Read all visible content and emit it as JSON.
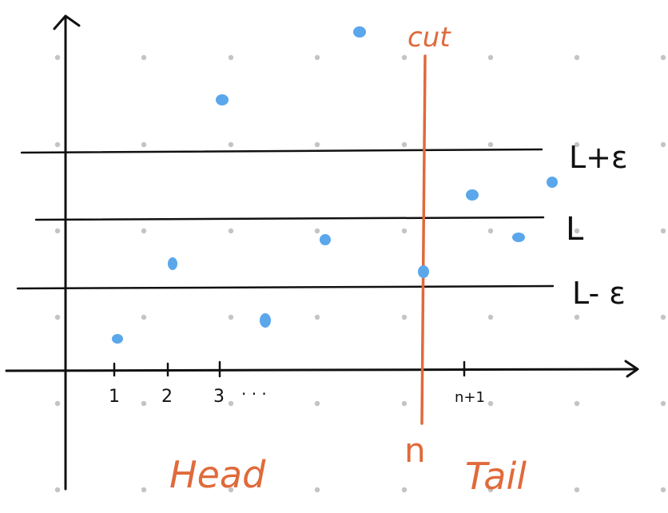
{
  "labels": {
    "cut": "cut",
    "upper_band": "L+ε",
    "limit": "L",
    "lower_band": "L- ε",
    "n": "n",
    "head": "Head",
    "tail": "Tail"
  },
  "ticks": {
    "t1": "1",
    "t2": "2",
    "t3": "3",
    "dots": "· · ·",
    "tn1": "n+1"
  },
  "colors": {
    "ink": "#111111",
    "accent": "#e06a3b",
    "point": "#5aa7ec",
    "grid_dot": "#c4c4c4"
  }
}
